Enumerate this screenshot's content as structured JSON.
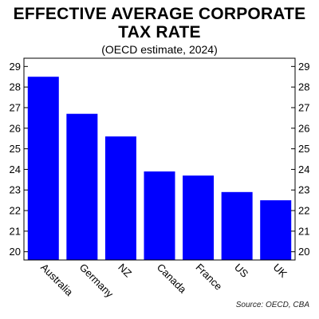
{
  "header": {
    "title_line1": "EFFECTIVE AVERAGE CORPORATE",
    "title_line2": "TAX RATE",
    "subtitle": "(OECD estimate, 2024)"
  },
  "source": "Source: OECD, CBA",
  "colors": {
    "bar": "#0000ff",
    "axis": "#000000",
    "background": "#ffffff"
  },
  "chart_data": {
    "type": "bar",
    "title": "EFFECTIVE AVERAGE CORPORATE TAX RATE",
    "subtitle": "(OECD estimate, 2024)",
    "categories": [
      "Australia",
      "Germany",
      "NZ",
      "Canada",
      "France",
      "US",
      "UK"
    ],
    "values": [
      28.5,
      26.7,
      25.6,
      23.9,
      23.7,
      22.9,
      22.5
    ],
    "ylim": [
      19.6,
      29.4
    ],
    "yticks": [
      20,
      21,
      22,
      23,
      24,
      25,
      26,
      27,
      28,
      29
    ],
    "xlabel": "",
    "ylabel": "",
    "y_axis_sides": "left and right",
    "grid": false,
    "legend": "none"
  }
}
